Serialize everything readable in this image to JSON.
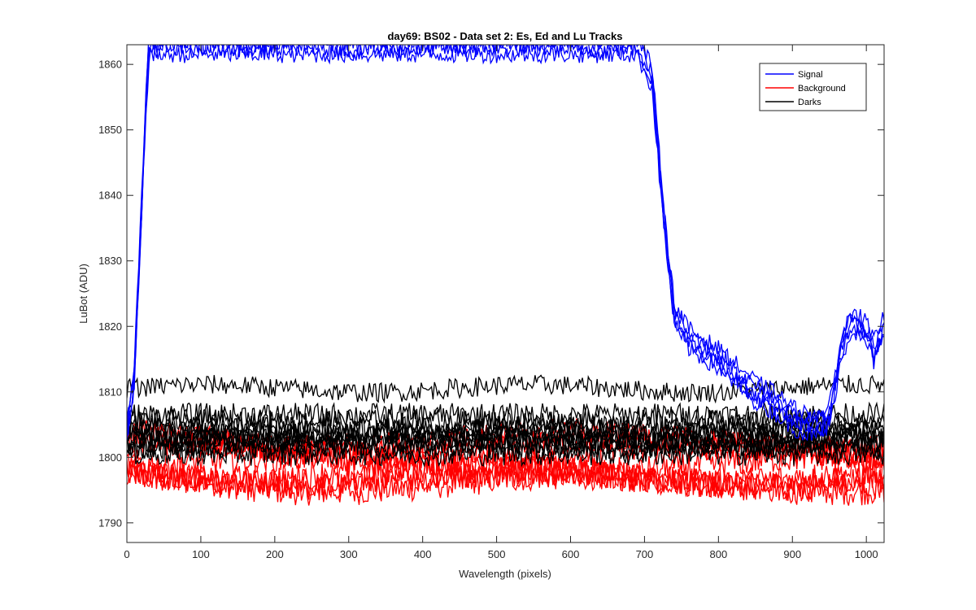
{
  "chart_data": {
    "type": "line",
    "title": "day69: BS02 - Data set 2: Es, Ed and Lu Tracks",
    "xlabel": "Wavelength (pixels)",
    "ylabel": "LuBot (ADU)",
    "xlim": [
      0,
      1024
    ],
    "ylim": [
      1787,
      1863
    ],
    "xticks": [
      0,
      100,
      200,
      300,
      400,
      500,
      600,
      700,
      800,
      900,
      1000
    ],
    "yticks": [
      1790,
      1800,
      1810,
      1820,
      1830,
      1840,
      1850,
      1860
    ],
    "grid": false,
    "legend_position": "top-right",
    "colors": {
      "Signal": "#0000ff",
      "Background": "#ff0000",
      "Darks": "#000000"
    },
    "series": [
      {
        "name": "Signal",
        "color": "#0000ff",
        "approx_traces": 5,
        "x": [
          0,
          10,
          20,
          25,
          30,
          40,
          50,
          690,
          710,
          725,
          740,
          760,
          800,
          850,
          880,
          900,
          920,
          940,
          950,
          965,
          980,
          1000,
          1010,
          1024
        ],
        "y": [
          1804,
          1812,
          1838,
          1852,
          1863,
          1863,
          1863,
          1863,
          1858,
          1838,
          1822,
          1818,
          1815,
          1810,
          1808,
          1806,
          1805,
          1805,
          1806,
          1816,
          1821,
          1819,
          1816,
          1820
        ]
      },
      {
        "name": "Background",
        "color": "#ff0000",
        "approx_traces": 8,
        "x": [
          0,
          200,
          400,
          600,
          800,
          1024
        ],
        "y": [
          1801,
          1800,
          1800,
          1800,
          1800,
          1800
        ]
      },
      {
        "name": "Darks",
        "color": "#000000",
        "approx_traces": 10,
        "x": [
          0,
          200,
          400,
          600,
          800,
          1024
        ],
        "y": [
          1803,
          1803,
          1803,
          1803,
          1803,
          1803
        ]
      }
    ],
    "darks_outlier_trace": {
      "x": [
        0,
        1024
      ],
      "y": [
        1810.5,
        1810.5
      ]
    }
  }
}
